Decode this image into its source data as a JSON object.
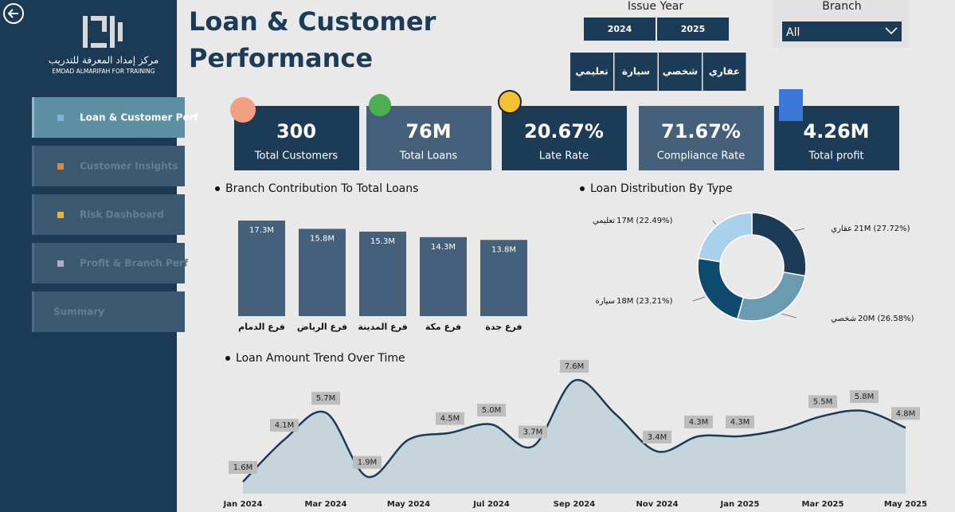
{
  "sidebar": {
    "logo_ar": "مركز إمداد المعرفة للتدريب",
    "logo_en": "EMDAD ALMARIFAH FOR TRAINING",
    "nav": [
      {
        "label": "Loan & Customer Perf",
        "active": true
      },
      {
        "label": "Customer Insights",
        "active": false
      },
      {
        "label": "Risk Dashboard",
        "active": false
      },
      {
        "label": "Profit & Branch Perf",
        "active": false
      },
      {
        "label": "Summary",
        "active": false
      }
    ]
  },
  "header": {
    "title": "Loan & Customer Performance"
  },
  "filters": {
    "issue_year": {
      "label": "Issue Year",
      "options": [
        "2024",
        "2025"
      ]
    },
    "loan_type": {
      "options": [
        "تعليمي",
        "سيارة",
        "شخصي",
        "عقاري"
      ]
    },
    "branch": {
      "label": "Branch",
      "value": "All"
    }
  },
  "kpis": [
    {
      "value": "300",
      "label": "Total Customers"
    },
    {
      "value": "76M",
      "label": "Total Loans"
    },
    {
      "value": "20.67%",
      "label": "Late Rate"
    },
    {
      "value": "71.67%",
      "label": "Compliance Rate"
    },
    {
      "value": "4.26M",
      "label": "Total profit"
    }
  ],
  "chart_data": [
    {
      "type": "bar",
      "title": "Branch Contribution To Total Loans",
      "color": "#44607a",
      "categories": [
        "فرع الدمام",
        "فرع الرياض",
        "فرع المدينة",
        "فرع مكة",
        "فرع جدة"
      ],
      "values": [
        17.3,
        15.8,
        15.3,
        14.3,
        13.8
      ],
      "value_labels": [
        "17.3M",
        "15.8M",
        "15.3M",
        "14.3M",
        "13.8M"
      ]
    },
    {
      "type": "pie",
      "title": "Loan Distribution By Type",
      "categories": [
        "عقاري",
        "شخصي",
        "سيارة",
        "تعليمي"
      ],
      "values": [
        27.72,
        26.58,
        23.21,
        22.49
      ],
      "value_labels": [
        "21M (27.72%)",
        "20M (26.58%)",
        "18M (23.21%)",
        "17M (22.49%)"
      ],
      "colors": [
        "#1c3b57",
        "#6b9bb0",
        "#0d4a6e",
        "#a9d1ee"
      ]
    },
    {
      "type": "line",
      "title": "Loan Amount Trend Over Time",
      "color": "#1c3b57",
      "categories": [
        "Jan 2024",
        null,
        "Mar 2024",
        null,
        "May 2024",
        null,
        "Jul 2024",
        null,
        "Sep 2024",
        null,
        "Nov 2024",
        null,
        "Jan 2025",
        null,
        "Mar 2025",
        null,
        "May 2025"
      ],
      "values": [
        1.6,
        4.1,
        5.7,
        1.9,
        4.1,
        4.5,
        5.0,
        3.7,
        7.6,
        5.6,
        3.4,
        4.3,
        4.3,
        4.7,
        5.5,
        5.8,
        4.8
      ],
      "value_labels": [
        "1.6M",
        "4.1M",
        "5.7M",
        "1.9M",
        null,
        "4.5M",
        "5.0M",
        "3.7M",
        "7.6M",
        null,
        "3.4M",
        "4.3M",
        "4.3M",
        null,
        "5.5M",
        "5.8M",
        "4.8M"
      ]
    }
  ]
}
